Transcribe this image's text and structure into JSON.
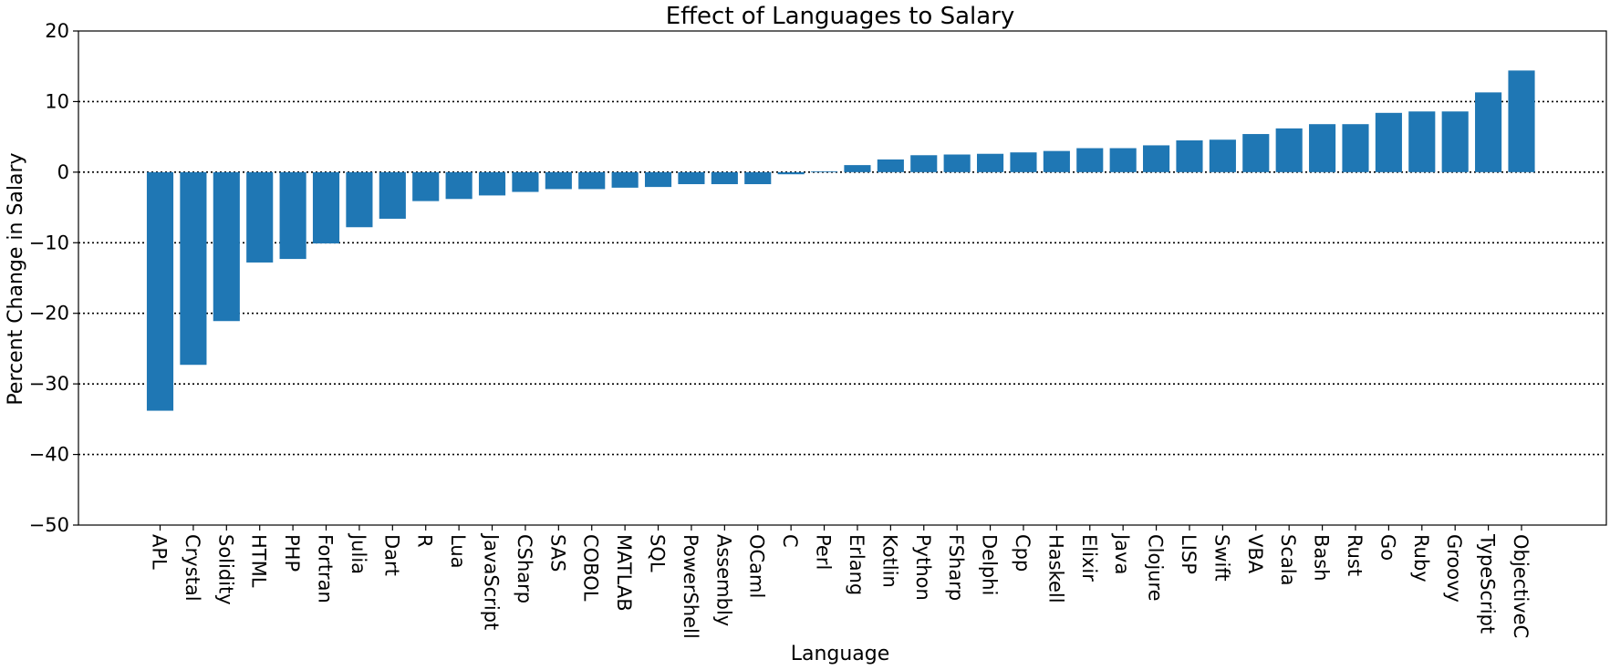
{
  "chart_data": {
    "type": "bar",
    "title": "Effect of Languages to Salary",
    "xlabel": "Language",
    "ylabel": "Percent Change in Salary",
    "ylim": [
      -50,
      20
    ],
    "yticks": [
      -50,
      -40,
      -30,
      -20,
      -10,
      0,
      10,
      20
    ],
    "grid": "horizontal dotted",
    "bar_color": "#1f77b4",
    "categories": [
      "APL",
      "Crystal",
      "Solidity",
      "HTML",
      "PHP",
      "Fortran",
      "Julia",
      "Dart",
      "R",
      "Lua",
      "JavaScript",
      "CSharp",
      "SAS",
      "COBOL",
      "MATLAB",
      "SQL",
      "PowerShell",
      "Assembly",
      "OCaml",
      "C",
      "Perl",
      "Erlang",
      "Kotlin",
      "Python",
      "FSharp",
      "Delphi",
      "Cpp",
      "Haskell",
      "Elixir",
      "Java",
      "Clojure",
      "LISP",
      "Swift",
      "VBA",
      "Scala",
      "Bash",
      "Rust",
      "Go",
      "Ruby",
      "Groovy",
      "TypeScript",
      "ObjectiveC"
    ],
    "values": [
      -33.8,
      -27.3,
      -21.1,
      -12.8,
      -12.3,
      -10.1,
      -7.8,
      -6.6,
      -4.1,
      -3.8,
      -3.3,
      -2.8,
      -2.4,
      -2.4,
      -2.2,
      -2.1,
      -1.7,
      -1.7,
      -1.7,
      -0.3,
      0.1,
      1.0,
      1.8,
      2.4,
      2.5,
      2.6,
      2.8,
      3.0,
      3.4,
      3.4,
      3.8,
      4.5,
      4.6,
      5.4,
      6.2,
      6.8,
      6.8,
      8.4,
      8.6,
      8.6,
      11.3,
      14.4
    ]
  }
}
